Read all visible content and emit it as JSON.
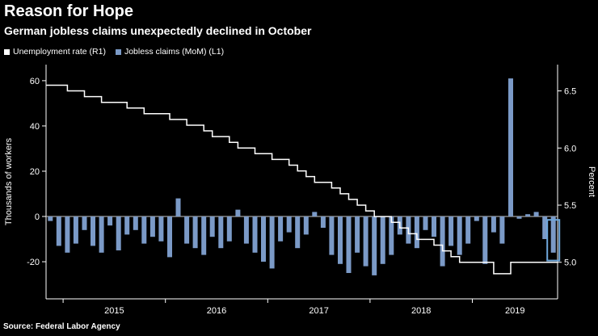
{
  "header": {
    "title": "Reason for Hope",
    "subtitle": "German jobless claims unexpectedly declined in October"
  },
  "legend": [
    {
      "label": "Unemployment rate (R1)",
      "color": "#ffffff"
    },
    {
      "label": "Jobless claims (MoM) (L1)",
      "color": "#7b9ac7"
    }
  ],
  "footer": {
    "source": "Source: Federal Labor Agency"
  },
  "chart_data": {
    "type": "bar+line",
    "title": "Reason for Hope",
    "subtitle": "German jobless claims unexpectedly declined in October",
    "x_years": [
      2015,
      2016,
      2017,
      2018,
      2019
    ],
    "months": [
      "2014-11",
      "2014-12",
      "2015-01",
      "2015-02",
      "2015-03",
      "2015-04",
      "2015-05",
      "2015-06",
      "2015-07",
      "2015-08",
      "2015-09",
      "2015-10",
      "2015-11",
      "2015-12",
      "2016-01",
      "2016-02",
      "2016-03",
      "2016-04",
      "2016-05",
      "2016-06",
      "2016-07",
      "2016-08",
      "2016-09",
      "2016-10",
      "2016-11",
      "2016-12",
      "2017-01",
      "2017-02",
      "2017-03",
      "2017-04",
      "2017-05",
      "2017-06",
      "2017-07",
      "2017-08",
      "2017-09",
      "2017-10",
      "2017-11",
      "2017-12",
      "2018-01",
      "2018-02",
      "2018-03",
      "2018-04",
      "2018-05",
      "2018-06",
      "2018-07",
      "2018-08",
      "2018-09",
      "2018-10",
      "2018-11",
      "2018-12",
      "2019-01",
      "2019-02",
      "2019-03",
      "2019-04",
      "2019-05",
      "2019-06",
      "2019-07",
      "2019-08",
      "2019-09",
      "2019-10"
    ],
    "bars": {
      "name": "Jobless claims (MoM) (L1)",
      "unit": "thousands of workers",
      "values": [
        -2,
        -13,
        -16,
        -12,
        -6,
        -13,
        -16,
        -4,
        -15,
        -8,
        -6,
        -12,
        -9,
        -11,
        -18,
        8,
        -12,
        -14,
        -17,
        -9,
        -14,
        -11,
        3,
        -12,
        -16,
        -20,
        -23,
        -11,
        -7,
        -14,
        -8,
        2,
        -5,
        -17,
        -21,
        -25,
        -16,
        -22,
        -26,
        -21,
        -17,
        -8,
        -12,
        -14,
        -6,
        -9,
        -22,
        -13,
        -17,
        -12,
        -2,
        -21,
        -7,
        -12,
        61,
        -1,
        1,
        2,
        -10,
        -16
      ]
    },
    "line": {
      "name": "Unemployment rate (R1)",
      "unit": "percent",
      "values": [
        6.55,
        6.55,
        6.5,
        6.5,
        6.45,
        6.45,
        6.4,
        6.4,
        6.4,
        6.35,
        6.35,
        6.3,
        6.3,
        6.3,
        6.25,
        6.25,
        6.2,
        6.2,
        6.15,
        6.1,
        6.1,
        6.05,
        6.0,
        6.0,
        5.95,
        5.95,
        5.9,
        5.9,
        5.85,
        5.8,
        5.75,
        5.7,
        5.7,
        5.65,
        5.6,
        5.55,
        5.5,
        5.45,
        5.4,
        5.4,
        5.35,
        5.3,
        5.25,
        5.2,
        5.2,
        5.15,
        5.1,
        5.05,
        5.0,
        5.0,
        5.0,
        5.0,
        4.9,
        4.9,
        5.0,
        5.0,
        5.0,
        5.0,
        5.0,
        5.0
      ]
    },
    "left_axis": {
      "label": "Thousands of workers",
      "ticks": [
        60,
        40,
        20,
        0,
        -20
      ],
      "range": [
        -36.4,
        67.1
      ]
    },
    "right_axis": {
      "label": "Percent",
      "ticks": [
        6.5,
        6.0,
        5.5,
        5.0
      ],
      "range": [
        4.68,
        6.73
      ]
    },
    "highlight": {
      "month": "2019-10",
      "box_top": -1.5,
      "box_bottom": -19.5
    },
    "colors": {
      "background": "#000000",
      "bar": "#7b9ac7",
      "line": "#ffffff",
      "axis": "#ffffff",
      "zero_line": "#c8c8c8",
      "highlight": "#6fa8dc"
    },
    "legend_position": "top-left",
    "grid": false
  }
}
